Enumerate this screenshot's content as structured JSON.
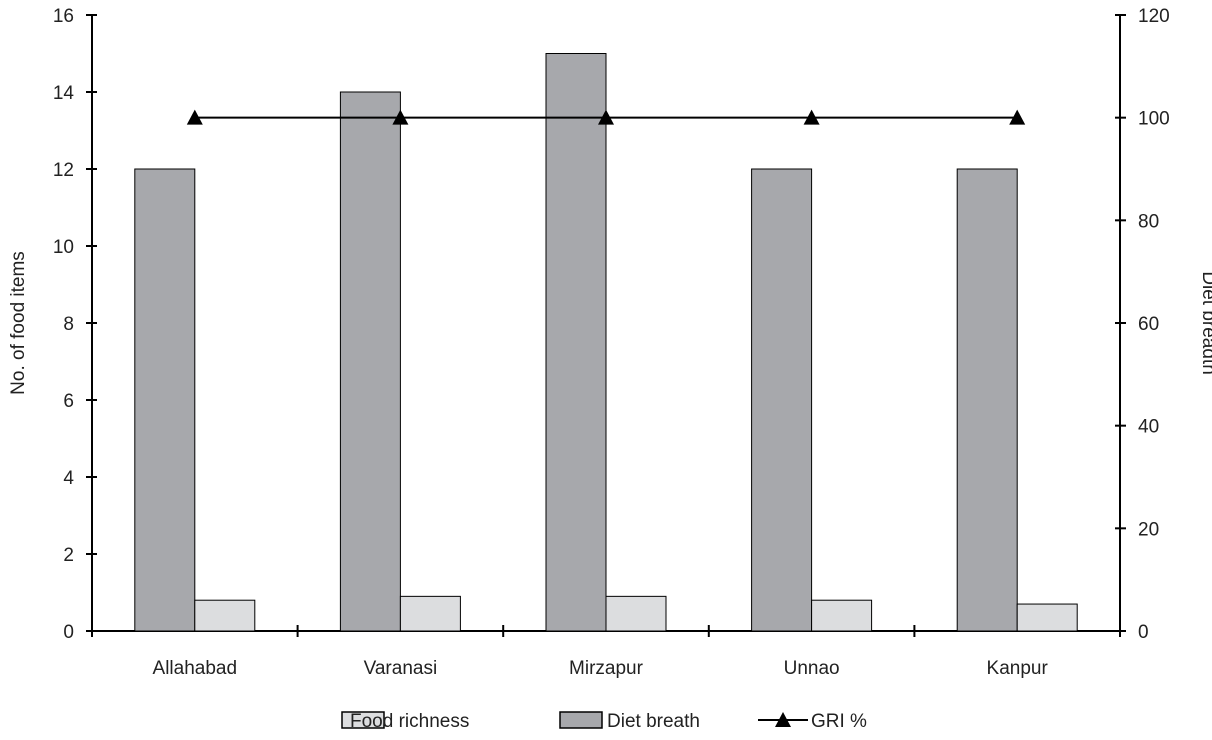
{
  "chart_data": {
    "type": "bar",
    "categories": [
      "Allahabad",
      "Varanasi",
      "Mirzapur",
      "Unnao",
      "Kanpur"
    ],
    "series": [
      {
        "name": "Diet breath",
        "kind": "bar",
        "axis": "left",
        "values": [
          12,
          14,
          15,
          12,
          12
        ],
        "color": "#a7a8ac"
      },
      {
        "name": "Food richness",
        "kind": "bar",
        "axis": "left",
        "values": [
          0.8,
          0.9,
          0.9,
          0.8,
          0.7
        ],
        "color": "#dcdddf"
      },
      {
        "name": "GRI %",
        "kind": "line",
        "axis": "right",
        "marker": "triangle",
        "values": [
          100,
          100,
          100,
          100,
          100
        ],
        "color": "#000000"
      }
    ],
    "ylabel": "No. of food items",
    "y2label": "Diet breadth",
    "ylim": [
      0,
      16
    ],
    "y2lim": [
      0,
      120
    ],
    "yticks": [
      "0",
      "2",
      "4",
      "6",
      "8",
      "10",
      "12",
      "14",
      "16"
    ],
    "y2ticks": [
      "0",
      "20",
      "40",
      "60",
      "80",
      "100",
      "120"
    ],
    "grid": false,
    "legend_position": "bottom",
    "legend": [
      "Food richness",
      "Diet breath",
      "GRI %"
    ]
  }
}
